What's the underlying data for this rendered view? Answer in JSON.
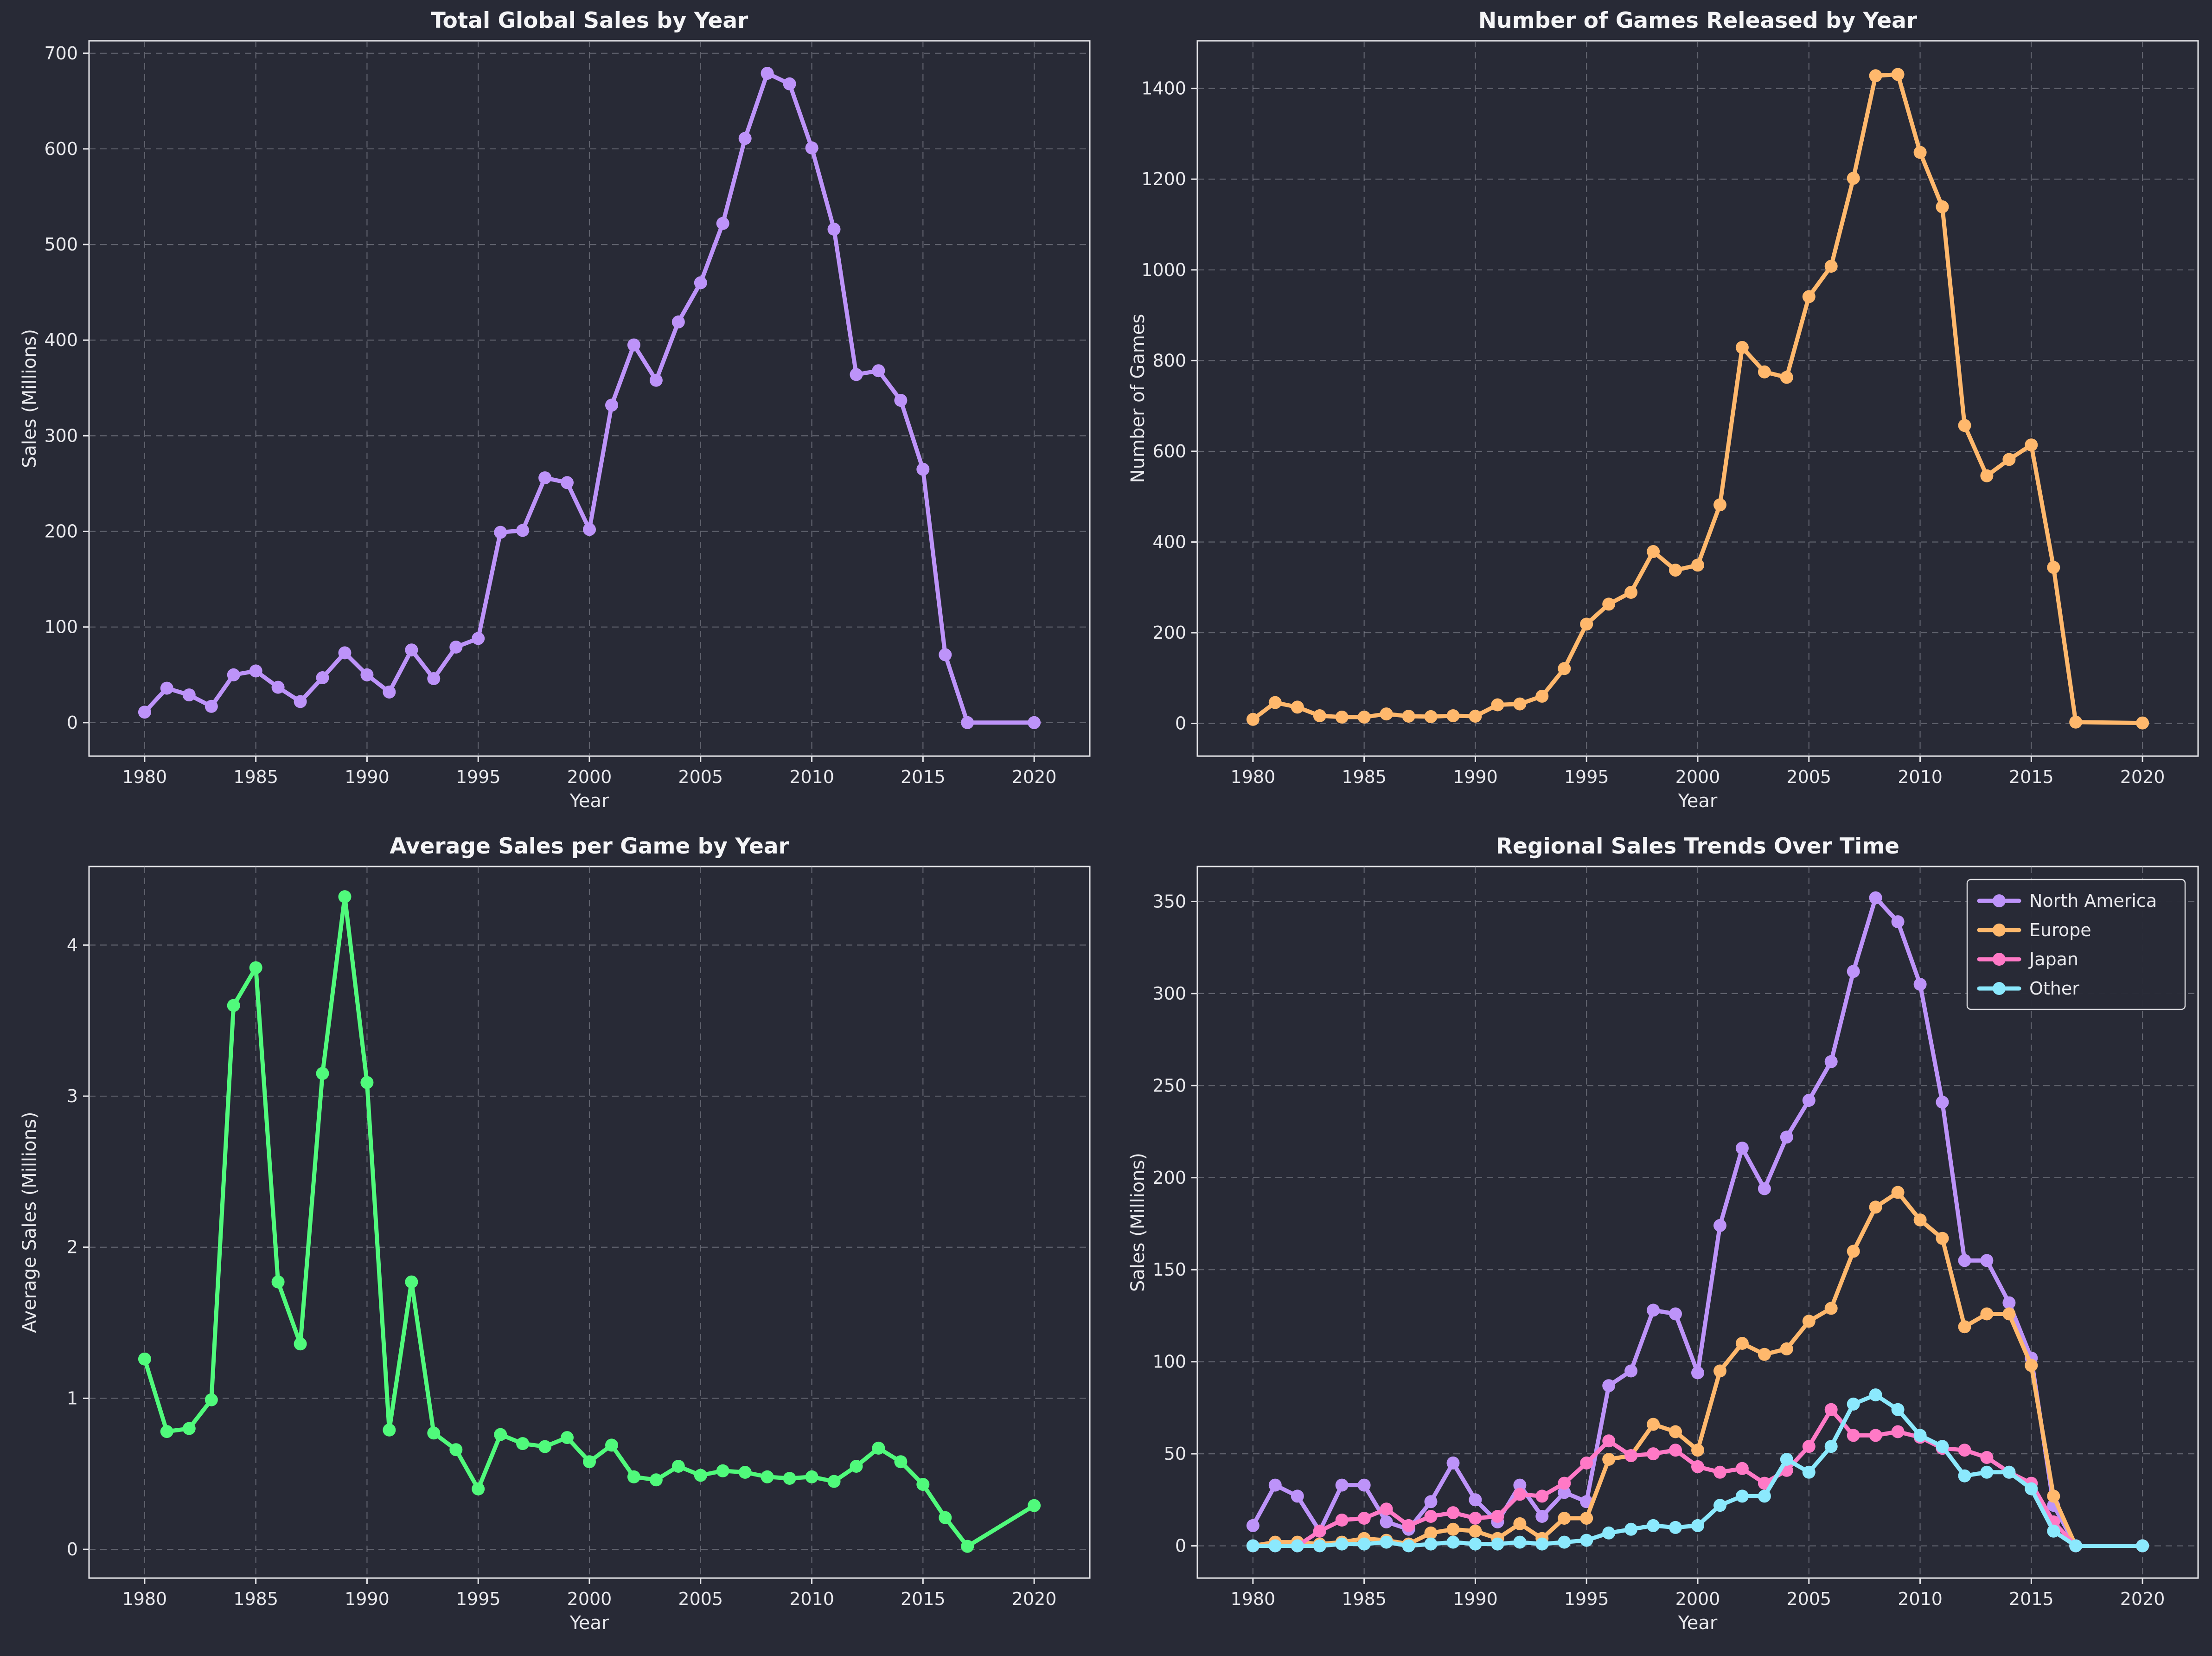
{
  "chart_data": [
    {
      "type": "line",
      "title": "Total Global Sales by Year",
      "xlabel": "Year",
      "ylabel": "Sales (Millions)",
      "xlim": [
        1977.5,
        2022.5
      ],
      "ylim": [
        -35,
        713
      ],
      "xticks": [
        1980,
        1985,
        1990,
        1995,
        2000,
        2005,
        2010,
        2015,
        2020
      ],
      "yticks": [
        0,
        100,
        200,
        300,
        400,
        500,
        600,
        700
      ],
      "grid": true,
      "series": [
        {
          "color": "#bd93f9",
          "x": [
            1980,
            1981,
            1982,
            1983,
            1984,
            1985,
            1986,
            1987,
            1988,
            1989,
            1990,
            1991,
            1992,
            1993,
            1994,
            1995,
            1996,
            1997,
            1998,
            1999,
            2000,
            2001,
            2002,
            2003,
            2004,
            2005,
            2006,
            2007,
            2008,
            2009,
            2010,
            2011,
            2012,
            2013,
            2014,
            2015,
            2016,
            2017,
            2020
          ],
          "values": [
            11,
            36,
            29,
            17,
            50,
            54,
            37,
            22,
            47,
            73,
            50,
            32,
            76,
            46,
            79,
            88,
            199,
            201,
            256,
            251,
            202,
            332,
            395,
            358,
            419,
            460,
            522,
            611,
            679,
            668,
            601,
            516,
            364,
            368,
            337,
            265,
            71,
            0,
            0
          ]
        }
      ]
    },
    {
      "type": "line",
      "title": "Number of Games Released by Year",
      "xlabel": "Year",
      "ylabel": "Number of Games",
      "xlim": [
        1977.5,
        2022.5
      ],
      "ylim": [
        -72,
        1505
      ],
      "xticks": [
        1980,
        1985,
        1990,
        1995,
        2000,
        2005,
        2010,
        2015,
        2020
      ],
      "yticks": [
        0,
        200,
        400,
        600,
        800,
        1000,
        1200,
        1400
      ],
      "grid": true,
      "series": [
        {
          "color": "#ffb86c",
          "x": [
            1980,
            1981,
            1982,
            1983,
            1984,
            1985,
            1986,
            1987,
            1988,
            1989,
            1990,
            1991,
            1992,
            1993,
            1994,
            1995,
            1996,
            1997,
            1998,
            1999,
            2000,
            2001,
            2002,
            2003,
            2004,
            2005,
            2006,
            2007,
            2008,
            2009,
            2010,
            2011,
            2012,
            2013,
            2014,
            2015,
            2016,
            2017,
            2020
          ],
          "values": [
            9,
            46,
            36,
            17,
            14,
            14,
            21,
            16,
            15,
            17,
            16,
            41,
            43,
            60,
            121,
            219,
            263,
            289,
            379,
            338,
            349,
            482,
            829,
            775,
            763,
            941,
            1008,
            1202,
            1428,
            1431,
            1259,
            1139,
            657,
            546,
            582,
            614,
            344,
            3,
            1
          ]
        }
      ]
    },
    {
      "type": "line",
      "title": "Average Sales per Game by Year",
      "xlabel": "Year",
      "ylabel": "Average Sales (Millions)",
      "xlim": [
        1977.5,
        2022.5
      ],
      "ylim": [
        -0.19,
        4.52
      ],
      "xticks": [
        1980,
        1985,
        1990,
        1995,
        2000,
        2005,
        2010,
        2015,
        2020
      ],
      "yticks": [
        0,
        1,
        2,
        3,
        4
      ],
      "grid": true,
      "series": [
        {
          "color": "#50fa7b",
          "x": [
            1980,
            1981,
            1982,
            1983,
            1984,
            1985,
            1986,
            1987,
            1988,
            1989,
            1990,
            1991,
            1992,
            1993,
            1994,
            1995,
            1996,
            1997,
            1998,
            1999,
            2000,
            2001,
            2002,
            2003,
            2004,
            2005,
            2006,
            2007,
            2008,
            2009,
            2010,
            2011,
            2012,
            2013,
            2014,
            2015,
            2016,
            2017,
            2020
          ],
          "values": [
            1.26,
            0.78,
            0.8,
            0.99,
            3.6,
            3.85,
            1.77,
            1.36,
            3.15,
            4.32,
            3.09,
            0.79,
            1.77,
            0.77,
            0.66,
            0.4,
            0.76,
            0.7,
            0.68,
            0.74,
            0.58,
            0.69,
            0.48,
            0.46,
            0.55,
            0.49,
            0.52,
            0.51,
            0.48,
            0.47,
            0.48,
            0.45,
            0.55,
            0.67,
            0.58,
            0.43,
            0.21,
            0.02,
            0.29
          ]
        }
      ]
    },
    {
      "type": "line",
      "title": "Regional Sales Trends Over Time",
      "xlabel": "Year",
      "ylabel": "Sales (Millions)",
      "xlim": [
        1977.5,
        2022.5
      ],
      "ylim": [
        -17.5,
        369
      ],
      "xticks": [
        1980,
        1985,
        1990,
        1995,
        2000,
        2005,
        2010,
        2015,
        2020
      ],
      "yticks": [
        0,
        50,
        100,
        150,
        200,
        250,
        300,
        350
      ],
      "grid": true,
      "legend": "top-right",
      "x": [
        1980,
        1981,
        1982,
        1983,
        1984,
        1985,
        1986,
        1987,
        1988,
        1989,
        1990,
        1991,
        1992,
        1993,
        1994,
        1995,
        1996,
        1997,
        1998,
        1999,
        2000,
        2001,
        2002,
        2003,
        2004,
        2005,
        2006,
        2007,
        2008,
        2009,
        2010,
        2011,
        2012,
        2013,
        2014,
        2015,
        2016,
        2017,
        2020
      ],
      "series": [
        {
          "name": "North America",
          "color": "#bd93f9",
          "values": [
            11,
            33,
            27,
            8,
            33,
            33,
            13,
            9,
            24,
            45,
            25,
            13,
            33,
            16,
            29,
            24,
            87,
            95,
            128,
            126,
            94,
            174,
            216,
            194,
            222,
            242,
            263,
            312,
            352,
            339,
            305,
            241,
            155,
            155,
            132,
            102,
            22,
            0,
            0
          ]
        },
        {
          "name": "Europe",
          "color": "#ffb86c",
          "values": [
            0,
            2,
            2,
            1,
            2,
            4,
            3,
            1,
            7,
            9,
            8,
            4,
            12,
            4,
            15,
            15,
            47,
            49,
            66,
            62,
            52,
            95,
            110,
            104,
            107,
            122,
            129,
            160,
            184,
            192,
            177,
            167,
            119,
            126,
            126,
            98,
            27,
            0,
            0
          ]
        },
        {
          "name": "Japan",
          "color": "#ff79c6",
          "values": [
            0,
            0,
            0,
            8,
            14,
            15,
            20,
            11,
            16,
            18,
            15,
            16,
            28,
            27,
            34,
            45,
            57,
            49,
            50,
            52,
            43,
            40,
            42,
            34,
            41,
            54,
            74,
            60,
            60,
            62,
            59,
            53,
            52,
            48,
            40,
            34,
            13,
            0,
            0
          ]
        },
        {
          "name": "Other",
          "color": "#8be9fd",
          "values": [
            0,
            0,
            0,
            0,
            1,
            1,
            2,
            0,
            1,
            2,
            1,
            1,
            2,
            1,
            2,
            3,
            7,
            9,
            11,
            10,
            11,
            22,
            27,
            27,
            47,
            40,
            54,
            77,
            82,
            74,
            60,
            54,
            38,
            40,
            40,
            31,
            8,
            0,
            0
          ]
        }
      ]
    }
  ]
}
